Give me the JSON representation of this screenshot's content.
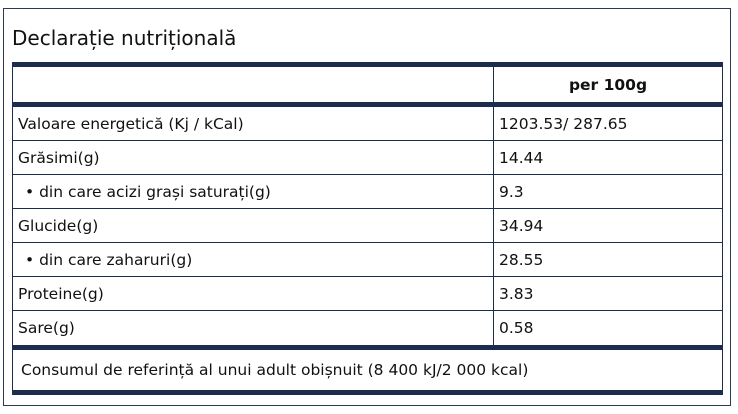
{
  "header": {
    "title": "Declarație nutrițională"
  },
  "table": {
    "column_header": "per 100g",
    "rows": [
      [
        "Valoare energetică (Kj / kCal)",
        "1203.53/ 287.65"
      ],
      [
        "Grăsimi(g)",
        "14.44"
      ],
      [
        "• din care acizi grași saturați(g)",
        "9.3"
      ],
      [
        "Glucide(g)",
        "34.94"
      ],
      [
        "• din care zaharuri(g)",
        "28.55"
      ],
      [
        "Proteine(g)",
        "3.83"
      ],
      [
        "Sare(g)",
        "0.58"
      ]
    ],
    "footer": "Consumul de referință al unui adult obișnuit (8 400 kJ/2 000 kcal)"
  }
}
